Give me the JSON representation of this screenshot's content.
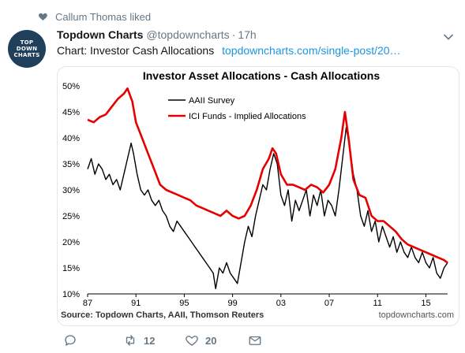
{
  "liked": {
    "text": "Callum Thomas liked",
    "icon": "heart-icon"
  },
  "tweet": {
    "avatar_lines": [
      "TOP",
      "DOWN",
      "CHARTS"
    ],
    "author_name": "Topdown Charts",
    "author_handle": "@topdowncharts",
    "separator": "·",
    "time": "17h",
    "text": "Chart: Investor Cash Allocations",
    "link": "topdowncharts.com/single-post/20…"
  },
  "actions": {
    "reply": {
      "icon": "reply-icon"
    },
    "retweet": {
      "icon": "retweet-icon",
      "count": "12"
    },
    "like": {
      "icon": "heart-outline-icon",
      "count": "20"
    },
    "message": {
      "icon": "envelope-icon"
    }
  },
  "colors": {
    "aaii": "#000000",
    "ici": "#e60000",
    "link": "#1b95e0",
    "avatar": "#1f3f5b"
  },
  "chart_data": {
    "type": "line",
    "title": "Investor Asset Allocations - Cash Allocations",
    "source": "Source: Topdown Charts, AAII, Thomson Reuters",
    "watermark": "topdowncharts.com",
    "x_ticks": [
      "87",
      "91",
      "95",
      "99",
      "03",
      "07",
      "11",
      "15"
    ],
    "x_tick_years": [
      1987,
      1991,
      1995,
      1999,
      2003,
      2007,
      2011,
      2015
    ],
    "xlim": [
      1987,
      2016.8
    ],
    "y_ticks": [
      "50%",
      "45%",
      "40%",
      "35%",
      "30%",
      "25%",
      "20%",
      "15%",
      "10%"
    ],
    "ylim": [
      10,
      50
    ],
    "grid": false,
    "legend_position": "top-center",
    "series": [
      {
        "name": "AAII Survey",
        "color": "#000000",
        "points": [
          [
            1987.0,
            34
          ],
          [
            1987.3,
            36
          ],
          [
            1987.6,
            33
          ],
          [
            1987.9,
            35
          ],
          [
            1988.2,
            34
          ],
          [
            1988.5,
            32
          ],
          [
            1988.8,
            33
          ],
          [
            1989.1,
            31
          ],
          [
            1989.4,
            32
          ],
          [
            1989.7,
            30
          ],
          [
            1990.0,
            33
          ],
          [
            1990.3,
            36
          ],
          [
            1990.6,
            39
          ],
          [
            1990.8,
            37
          ],
          [
            1991.1,
            33
          ],
          [
            1991.4,
            30
          ],
          [
            1991.7,
            29
          ],
          [
            1992.0,
            30
          ],
          [
            1992.3,
            28
          ],
          [
            1992.6,
            27
          ],
          [
            1992.9,
            28
          ],
          [
            1993.2,
            26
          ],
          [
            1993.5,
            25
          ],
          [
            1993.8,
            23
          ],
          [
            1994.1,
            22
          ],
          [
            1994.4,
            24
          ],
          [
            1994.7,
            23
          ],
          [
            1995.0,
            22
          ],
          [
            1995.3,
            21
          ],
          [
            1995.6,
            20
          ],
          [
            1995.9,
            19
          ],
          [
            1996.2,
            18
          ],
          [
            1996.5,
            17
          ],
          [
            1996.8,
            16
          ],
          [
            1997.1,
            15
          ],
          [
            1997.4,
            14
          ],
          [
            1997.6,
            11
          ],
          [
            1997.9,
            15
          ],
          [
            1998.2,
            14
          ],
          [
            1998.5,
            16
          ],
          [
            1998.8,
            14
          ],
          [
            1999.1,
            13
          ],
          [
            1999.4,
            12
          ],
          [
            1999.7,
            16
          ],
          [
            2000.0,
            20
          ],
          [
            2000.3,
            23
          ],
          [
            2000.6,
            21
          ],
          [
            2000.9,
            25
          ],
          [
            2001.2,
            28
          ],
          [
            2001.5,
            31
          ],
          [
            2001.8,
            30
          ],
          [
            2002.1,
            34
          ],
          [
            2002.4,
            37
          ],
          [
            2002.7,
            35
          ],
          [
            2003.0,
            29
          ],
          [
            2003.3,
            27
          ],
          [
            2003.6,
            30
          ],
          [
            2003.9,
            24
          ],
          [
            2004.2,
            28
          ],
          [
            2004.5,
            26
          ],
          [
            2004.8,
            28
          ],
          [
            2005.1,
            30
          ],
          [
            2005.4,
            25
          ],
          [
            2005.7,
            29
          ],
          [
            2006.0,
            27
          ],
          [
            2006.3,
            30
          ],
          [
            2006.6,
            25
          ],
          [
            2006.9,
            28
          ],
          [
            2007.2,
            27
          ],
          [
            2007.5,
            25
          ],
          [
            2007.8,
            30
          ],
          [
            2008.1,
            36
          ],
          [
            2008.4,
            42
          ],
          [
            2008.7,
            38
          ],
          [
            2009.0,
            33
          ],
          [
            2009.3,
            30
          ],
          [
            2009.6,
            25
          ],
          [
            2009.9,
            23
          ],
          [
            2010.2,
            26
          ],
          [
            2010.5,
            22
          ],
          [
            2010.8,
            24
          ],
          [
            2011.1,
            20
          ],
          [
            2011.4,
            23
          ],
          [
            2011.7,
            21
          ],
          [
            2012.0,
            19
          ],
          [
            2012.3,
            21
          ],
          [
            2012.6,
            18
          ],
          [
            2012.9,
            20
          ],
          [
            2013.2,
            18
          ],
          [
            2013.5,
            17
          ],
          [
            2013.8,
            19
          ],
          [
            2014.1,
            17
          ],
          [
            2014.4,
            16
          ],
          [
            2014.7,
            18
          ],
          [
            2015.0,
            16
          ],
          [
            2015.3,
            15
          ],
          [
            2015.6,
            17
          ],
          [
            2015.9,
            14
          ],
          [
            2016.2,
            13
          ],
          [
            2016.5,
            15
          ],
          [
            2016.8,
            16
          ]
        ]
      },
      {
        "name": "ICI Funds - Implied Allocations",
        "color": "#e60000",
        "points": [
          [
            1987.0,
            43.5
          ],
          [
            1987.5,
            43
          ],
          [
            1988.0,
            44
          ],
          [
            1988.5,
            44.5
          ],
          [
            1989.0,
            46
          ],
          [
            1989.5,
            47.5
          ],
          [
            1990.0,
            48.5
          ],
          [
            1990.3,
            49.5
          ],
          [
            1990.7,
            47
          ],
          [
            1991.0,
            43
          ],
          [
            1991.5,
            40
          ],
          [
            1992.0,
            37
          ],
          [
            1992.5,
            34
          ],
          [
            1993.0,
            31
          ],
          [
            1993.5,
            30
          ],
          [
            1994.0,
            29.5
          ],
          [
            1994.5,
            29
          ],
          [
            1995.0,
            28.5
          ],
          [
            1995.5,
            28
          ],
          [
            1996.0,
            27
          ],
          [
            1996.5,
            26.5
          ],
          [
            1997.0,
            26
          ],
          [
            1997.5,
            25.5
          ],
          [
            1998.0,
            25
          ],
          [
            1998.5,
            26
          ],
          [
            1999.0,
            25
          ],
          [
            1999.5,
            24.5
          ],
          [
            2000.0,
            25
          ],
          [
            2000.5,
            27
          ],
          [
            2001.0,
            30
          ],
          [
            2001.5,
            34
          ],
          [
            2002.0,
            36
          ],
          [
            2002.3,
            38
          ],
          [
            2002.6,
            37
          ],
          [
            2003.0,
            33
          ],
          [
            2003.5,
            31
          ],
          [
            2004.0,
            31
          ],
          [
            2004.5,
            30.5
          ],
          [
            2005.0,
            30
          ],
          [
            2005.5,
            31
          ],
          [
            2006.0,
            30.5
          ],
          [
            2006.5,
            29.5
          ],
          [
            2007.0,
            31
          ],
          [
            2007.5,
            34
          ],
          [
            2008.0,
            40
          ],
          [
            2008.3,
            45
          ],
          [
            2008.6,
            40
          ],
          [
            2009.0,
            32
          ],
          [
            2009.5,
            29
          ],
          [
            2010.0,
            28.5
          ],
          [
            2010.5,
            25
          ],
          [
            2011.0,
            24
          ],
          [
            2011.5,
            24
          ],
          [
            2012.0,
            23
          ],
          [
            2012.5,
            22
          ],
          [
            2013.0,
            20.5
          ],
          [
            2013.5,
            19.5
          ],
          [
            2014.0,
            19
          ],
          [
            2014.5,
            18.5
          ],
          [
            2015.0,
            18
          ],
          [
            2015.5,
            17.5
          ],
          [
            2016.0,
            17
          ],
          [
            2016.5,
            16.5
          ],
          [
            2016.8,
            16
          ]
        ]
      }
    ]
  }
}
